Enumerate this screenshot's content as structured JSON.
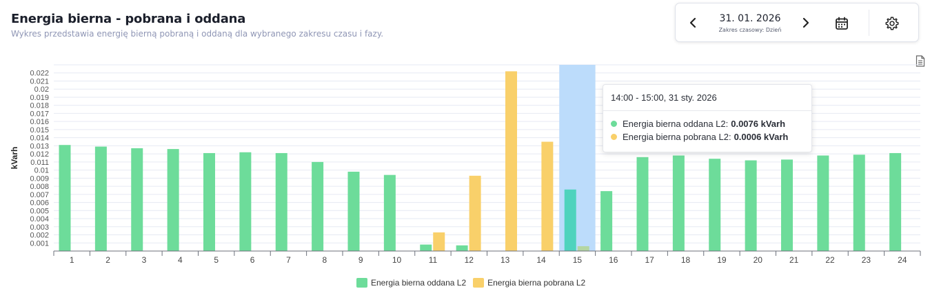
{
  "header": {
    "title": "Energia bierna - pobrana i oddana",
    "subtitle": "Wykres przedstawia energię bierną pobraną i oddaną dla wybranego zakresu czasu i fazy."
  },
  "controls": {
    "date": "31. 01. 2026",
    "range_label": "Zakres czasowy: Dzień",
    "prev_icon": "chevron-left-icon",
    "next_icon": "chevron-right-icon",
    "calendar_icon": "calendar-icon",
    "settings_icon": "gear-icon",
    "export_icon": "document-icon"
  },
  "tooltip": {
    "title": "14:00 - 15:00, 31 sty. 2026",
    "rows": [
      {
        "label": "Energia bierna oddana L2:",
        "value": "0.0076 kVarh",
        "color": "#6ddc9a"
      },
      {
        "label": "Energia bierna pobrana L2:",
        "value": "0.0006 kVarh",
        "color": "#f9d06a"
      }
    ]
  },
  "chart_data": {
    "type": "bar",
    "title": "Energia bierna - pobrana i oddana",
    "xlabel": "",
    "ylabel": "kVarh",
    "ylim": [
      0,
      0.023
    ],
    "yticks": [
      "0.001",
      "0.002",
      "0.003",
      "0.004",
      "0.005",
      "0.006",
      "0.007",
      "0.008",
      "0.009",
      "0.01",
      "0.011",
      "0.012",
      "0.013",
      "0.014",
      "0.015",
      "0.016",
      "0.017",
      "0.018",
      "0.019",
      "0.02",
      "0.021",
      "0.022"
    ],
    "grid": true,
    "highlighted_category": "15",
    "categories": [
      "1",
      "2",
      "3",
      "4",
      "5",
      "6",
      "7",
      "8",
      "9",
      "10",
      "11",
      "12",
      "13",
      "14",
      "15",
      "16",
      "17",
      "18",
      "19",
      "20",
      "21",
      "22",
      "23",
      "24"
    ],
    "series": [
      {
        "name": "Energia bierna oddana L2",
        "color": "#6ddc9a",
        "values": [
          0.0131,
          0.0129,
          0.0127,
          0.0126,
          0.0121,
          0.0122,
          0.0121,
          0.011,
          0.0098,
          0.0094,
          0.0008,
          0.0007,
          0,
          0,
          0.0076,
          0.0074,
          0.0116,
          0.0118,
          0.0114,
          0.0112,
          0.0113,
          0.0118,
          0.0119,
          0.0121
        ]
      },
      {
        "name": "Energia bierna pobrana L2",
        "color": "#f9d06a",
        "values": [
          0,
          0,
          0,
          0,
          0,
          0,
          0,
          0,
          0,
          0,
          0.0023,
          0.0093,
          0.0222,
          0.0135,
          0.0006,
          0,
          0,
          0,
          0,
          0,
          0,
          0,
          0,
          0
        ]
      }
    ]
  }
}
